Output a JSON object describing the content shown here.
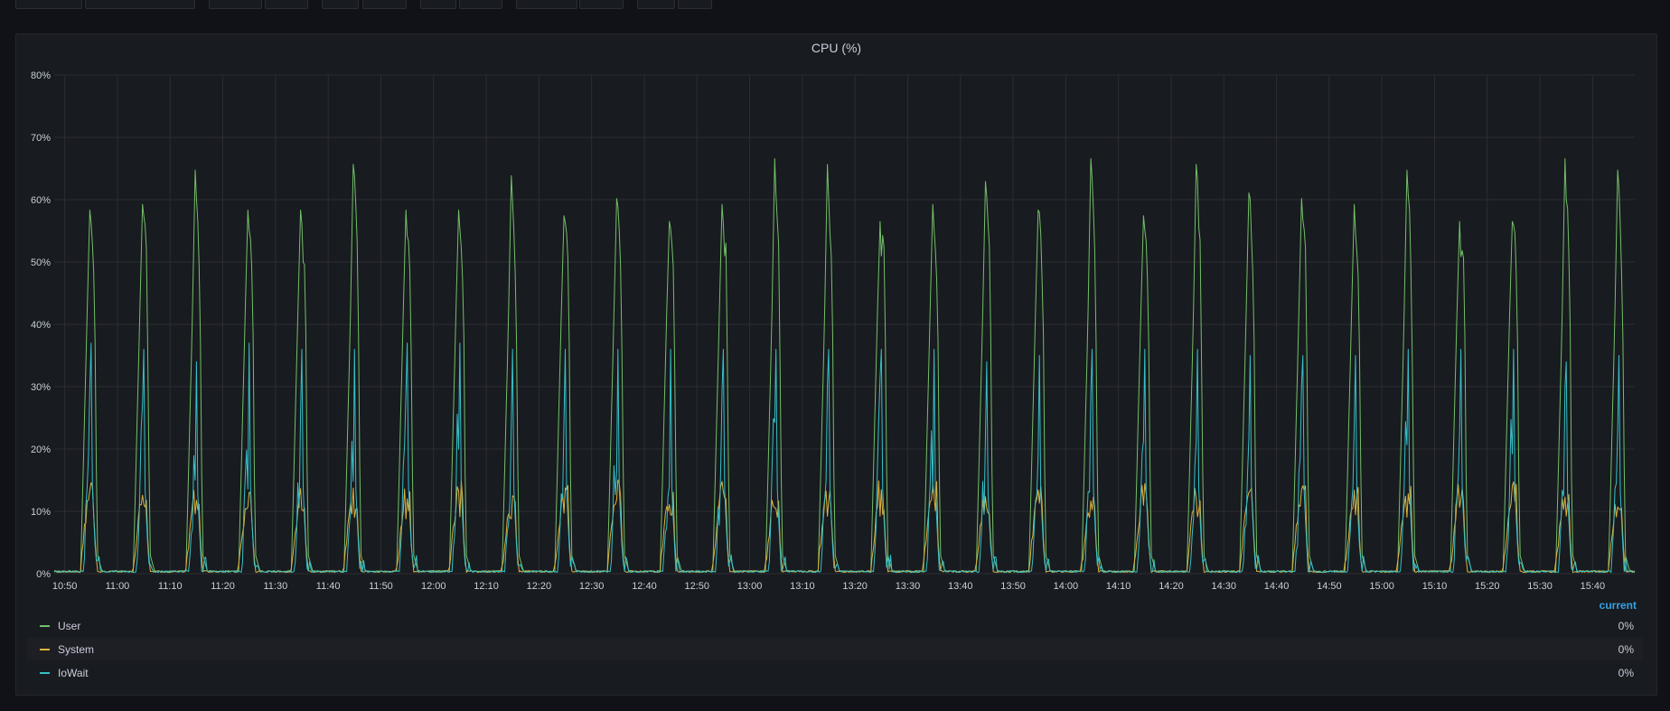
{
  "panel": {
    "title": "CPU (%)"
  },
  "legend": {
    "header": "current"
  },
  "colors": {
    "user": "#73bf69",
    "system": "#e0b13a",
    "iowait": "#36c0c8"
  },
  "chart_data": {
    "type": "line",
    "title": "CPU (%)",
    "xlabel": "",
    "ylabel": "",
    "x_time_range": [
      "10:48",
      "15:48"
    ],
    "ylim": [
      0,
      80
    ],
    "y_ticks": [
      "0%",
      "10%",
      "20%",
      "30%",
      "40%",
      "50%",
      "60%",
      "70%",
      "80%"
    ],
    "x_ticks": [
      "10:50",
      "11:00",
      "11:10",
      "11:20",
      "11:30",
      "11:40",
      "11:50",
      "12:00",
      "12:10",
      "12:20",
      "12:30",
      "12:40",
      "12:50",
      "13:00",
      "13:10",
      "13:20",
      "13:30",
      "13:40",
      "13:50",
      "14:00",
      "14:10",
      "14:20",
      "14:30",
      "14:40",
      "14:50",
      "15:00",
      "15:10",
      "15:20",
      "15:30",
      "15:40"
    ],
    "grid": true,
    "legend_position": "bottom",
    "burst_times": [
      "10:53",
      "11:03",
      "11:13",
      "11:23",
      "11:33",
      "11:43",
      "11:53",
      "12:03",
      "12:13",
      "12:23",
      "12:33",
      "12:43",
      "12:53",
      "13:03",
      "13:13",
      "13:23",
      "13:33",
      "13:43",
      "13:53",
      "14:03",
      "14:13",
      "14:23",
      "14:33",
      "14:43",
      "14:53",
      "15:03",
      "15:13",
      "15:23",
      "15:33",
      "15:43"
    ],
    "series": [
      {
        "name": "User",
        "current": "0%",
        "peaks": [
          60,
          61,
          67,
          60,
          60,
          68,
          60,
          60,
          66,
          59,
          62,
          58,
          61,
          69,
          68,
          58,
          61,
          65,
          60,
          69,
          59,
          68,
          63,
          62,
          61,
          67,
          58,
          58,
          69,
          67
        ]
      },
      {
        "name": "System",
        "current": "0%",
        "peaks": [
          15,
          15,
          15,
          14,
          14,
          15,
          14,
          15,
          14,
          15,
          16,
          15,
          15,
          15,
          15,
          15,
          15,
          15,
          15,
          14,
          15,
          15,
          14,
          15,
          15,
          15,
          15,
          15,
          15,
          15
        ]
      },
      {
        "name": "IoWait",
        "current": "0%",
        "peaks": [
          37,
          36,
          34,
          37,
          36,
          36,
          37,
          37,
          36,
          36,
          36,
          36,
          36,
          36,
          36,
          36,
          36,
          34,
          35,
          36,
          36,
          36,
          35,
          35,
          35,
          36,
          36,
          36,
          34,
          35
        ]
      }
    ]
  }
}
